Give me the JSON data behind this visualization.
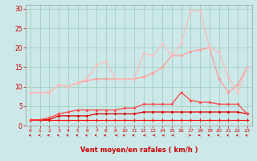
{
  "xlabel": "Vent moyen/en rafales ( km/h )",
  "x": [
    0,
    1,
    2,
    3,
    4,
    5,
    6,
    7,
    8,
    9,
    10,
    11,
    12,
    13,
    14,
    15,
    16,
    17,
    18,
    19,
    20,
    21,
    22,
    23
  ],
  "series": [
    {
      "name": "s1_flat",
      "color": "#ff0000",
      "lw": 0.8,
      "marker": "+",
      "ms": 2.5,
      "mew": 0.8,
      "y": [
        1.5,
        1.5,
        1.5,
        1.5,
        1.5,
        1.5,
        1.5,
        1.5,
        1.5,
        1.5,
        1.5,
        1.5,
        1.5,
        1.5,
        1.5,
        1.5,
        1.5,
        1.5,
        1.5,
        1.5,
        1.5,
        1.5,
        1.5,
        1.5
      ]
    },
    {
      "name": "s2_low",
      "color": "#dd0000",
      "lw": 0.9,
      "marker": "D",
      "ms": 1.5,
      "mew": 0.5,
      "y": [
        1.5,
        1.5,
        1.5,
        2.5,
        2.5,
        2.5,
        2.5,
        3.0,
        3.0,
        3.0,
        3.0,
        3.0,
        3.5,
        3.5,
        3.5,
        3.5,
        3.5,
        3.5,
        3.5,
        3.5,
        3.5,
        3.5,
        3.5,
        3.0
      ]
    },
    {
      "name": "s3_mid",
      "color": "#ff4444",
      "lw": 0.9,
      "marker": "D",
      "ms": 1.5,
      "mew": 0.5,
      "y": [
        1.5,
        1.5,
        2.0,
        3.0,
        3.5,
        4.0,
        4.0,
        4.0,
        4.0,
        4.0,
        4.5,
        4.5,
        5.5,
        5.5,
        5.5,
        5.5,
        8.5,
        6.5,
        6.0,
        6.0,
        5.5,
        5.5,
        5.5,
        3.0
      ]
    },
    {
      "name": "s4_upper",
      "color": "#ff9999",
      "lw": 0.9,
      "marker": "D",
      "ms": 1.5,
      "mew": 0.5,
      "y": [
        8.5,
        8.5,
        8.5,
        10.5,
        10.0,
        11.0,
        11.5,
        12.0,
        12.0,
        12.0,
        12.0,
        12.0,
        12.5,
        13.5,
        15.0,
        18.0,
        18.0,
        19.0,
        19.5,
        20.0,
        12.0,
        8.5,
        10.5,
        15.0
      ]
    },
    {
      "name": "s5_top",
      "color": "#ffbbbb",
      "lw": 0.9,
      "marker": "D",
      "ms": 1.5,
      "mew": 0.5,
      "y": [
        8.5,
        8.5,
        8.5,
        10.5,
        10.0,
        11.0,
        12.0,
        15.5,
        16.5,
        12.0,
        12.0,
        12.0,
        18.5,
        18.0,
        21.0,
        18.0,
        21.0,
        29.5,
        29.5,
        20.0,
        19.0,
        12.5,
        8.5,
        15.0
      ]
    }
  ],
  "ylim": [
    0,
    31
  ],
  "xlim": [
    -0.5,
    23.5
  ],
  "yticks": [
    0,
    5,
    10,
    15,
    20,
    25,
    30
  ],
  "xticks": [
    0,
    1,
    2,
    3,
    4,
    5,
    6,
    7,
    8,
    9,
    10,
    11,
    12,
    13,
    14,
    15,
    16,
    17,
    18,
    19,
    20,
    21,
    22,
    23
  ],
  "bg_color": "#cce8e8",
  "grid_color": "#99ccbb",
  "tick_color": "#cc0000",
  "label_color": "#cc0000",
  "spine_color": "#999999"
}
